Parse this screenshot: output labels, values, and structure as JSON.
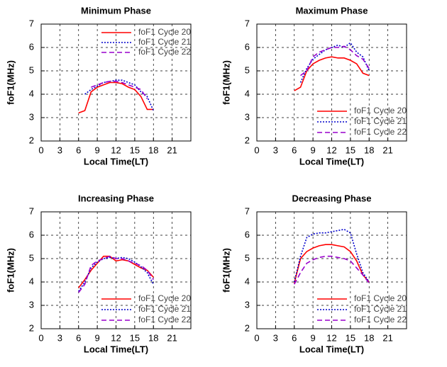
{
  "chart_data": [
    {
      "type": "line",
      "title": "Minimum Phase",
      "x_label": "Local Time(LT)",
      "y_label": "foF1(MHz)",
      "x": [
        6,
        7,
        8,
        9,
        10,
        11,
        12,
        13,
        14,
        15,
        16,
        17,
        18
      ],
      "series": [
        {
          "name": "foF1 Cycle 20",
          "color": "#ff0000",
          "style": "solid",
          "values": [
            3.2,
            3.3,
            4.1,
            4.3,
            4.4,
            4.5,
            4.5,
            4.45,
            4.3,
            4.2,
            3.9,
            3.35,
            3.35
          ]
        },
        {
          "name": "foF1 Cycle 21",
          "color": "#0000cc",
          "style": "dotted",
          "values": [
            null,
            4.0,
            4.2,
            4.35,
            4.5,
            4.55,
            4.6,
            4.6,
            4.5,
            4.4,
            4.1,
            3.9,
            3.3
          ]
        },
        {
          "name": "foF1 Cycle 22",
          "color": "#9900cc",
          "style": "dashed",
          "values": [
            null,
            null,
            4.3,
            4.4,
            4.5,
            4.55,
            4.55,
            4.5,
            4.4,
            4.3,
            4.2,
            3.8,
            null
          ]
        }
      ],
      "xlim": [
        0,
        24
      ],
      "xticks": [
        0,
        3,
        6,
        9,
        12,
        15,
        18,
        21
      ],
      "ylim": [
        2,
        7
      ],
      "yticks": [
        2,
        3,
        4,
        5,
        6,
        7
      ],
      "grid": true,
      "legend": "top-right"
    },
    {
      "type": "line",
      "title": "Maximum Phase",
      "x_label": "Local Time(LT)",
      "y_label": "foF1(MHz)",
      "x": [
        6,
        7,
        8,
        9,
        10,
        11,
        12,
        13,
        14,
        15,
        16,
        17,
        18
      ],
      "series": [
        {
          "name": "foF1 Cycle 20",
          "color": "#ff0000",
          "style": "solid",
          "values": [
            4.15,
            4.3,
            5.0,
            5.3,
            5.45,
            5.55,
            5.6,
            5.55,
            5.55,
            5.45,
            5.3,
            4.9,
            4.8
          ]
        },
        {
          "name": "foF1 Cycle 21",
          "color": "#0000cc",
          "style": "dotted",
          "values": [
            null,
            4.5,
            5.1,
            5.5,
            5.7,
            5.9,
            6.0,
            6.1,
            6.0,
            6.2,
            5.8,
            5.6,
            5.0
          ]
        },
        {
          "name": "foF1 Cycle 22",
          "color": "#9900cc",
          "style": "dashed",
          "values": [
            null,
            4.8,
            5.0,
            5.6,
            5.8,
            5.9,
            6.0,
            6.0,
            6.05,
            5.9,
            5.65,
            5.5,
            5.1
          ]
        }
      ],
      "xlim": [
        0,
        24
      ],
      "xticks": [
        0,
        3,
        6,
        9,
        12,
        15,
        18,
        21
      ],
      "ylim": [
        2,
        7
      ],
      "yticks": [
        2,
        3,
        4,
        5,
        6,
        7
      ],
      "grid": true,
      "legend": "bottom-right"
    },
    {
      "type": "line",
      "title": "Increasing Phase",
      "x_label": "Local Time(LT)",
      "y_label": "foF1(MHz)",
      "x": [
        6,
        7,
        8,
        9,
        10,
        11,
        12,
        13,
        14,
        15,
        16,
        17,
        18
      ],
      "series": [
        {
          "name": "foF1 Cycle 20",
          "color": "#ff0000",
          "style": "solid",
          "values": [
            3.75,
            4.1,
            4.5,
            4.8,
            5.1,
            5.1,
            4.9,
            4.95,
            4.9,
            4.75,
            4.6,
            4.5,
            4.2
          ]
        },
        {
          "name": "foF1 Cycle 21",
          "color": "#0000cc",
          "style": "dotted",
          "values": [
            3.6,
            4.0,
            4.6,
            4.85,
            5.0,
            5.05,
            5.0,
            5.05,
            5.0,
            4.85,
            4.65,
            4.4,
            3.9
          ]
        },
        {
          "name": "foF1 Cycle 22",
          "color": "#9900cc",
          "style": "dashed",
          "values": [
            3.55,
            3.9,
            4.7,
            4.9,
            5.0,
            5.1,
            5.0,
            5.0,
            4.9,
            4.8,
            4.7,
            4.5,
            4.1
          ]
        }
      ],
      "xlim": [
        0,
        24
      ],
      "xticks": [
        0,
        3,
        6,
        9,
        12,
        15,
        18,
        21
      ],
      "ylim": [
        2,
        7
      ],
      "yticks": [
        2,
        3,
        4,
        5,
        6,
        7
      ],
      "grid": true,
      "legend": "bottom-right"
    },
    {
      "type": "line",
      "title": "Decreasing Phase",
      "x_label": "Local Time(LT)",
      "y_label": "foF1(MHz)",
      "x": [
        6,
        7,
        8,
        9,
        10,
        11,
        12,
        13,
        14,
        15,
        16,
        17,
        18
      ],
      "series": [
        {
          "name": "foF1 Cycle 20",
          "color": "#ff0000",
          "style": "solid",
          "values": [
            3.95,
            5.0,
            5.3,
            5.45,
            5.55,
            5.6,
            5.6,
            5.55,
            5.5,
            5.3,
            4.9,
            4.3,
            4.0
          ]
        },
        {
          "name": "foF1 Cycle 21",
          "color": "#0000cc",
          "style": "dotted",
          "values": [
            4.0,
            5.1,
            5.9,
            6.05,
            6.1,
            6.1,
            6.15,
            6.2,
            6.25,
            6.1,
            5.2,
            4.4,
            4.0
          ]
        },
        {
          "name": "foF1 Cycle 22",
          "color": "#9900cc",
          "style": "dashed",
          "values": [
            3.9,
            4.4,
            4.8,
            4.95,
            5.05,
            5.1,
            5.1,
            5.05,
            5.0,
            4.9,
            4.6,
            4.3,
            3.95
          ]
        }
      ],
      "xlim": [
        0,
        24
      ],
      "xticks": [
        0,
        3,
        6,
        9,
        12,
        15,
        18,
        21
      ],
      "ylim": [
        2,
        7
      ],
      "yticks": [
        2,
        3,
        4,
        5,
        6,
        7
      ],
      "grid": true,
      "legend": "bottom-right"
    }
  ]
}
